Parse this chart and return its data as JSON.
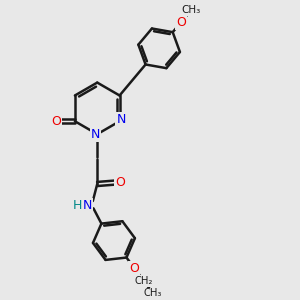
{
  "background_color": "#e8e8e8",
  "bond_color": "#1a1a1a",
  "nitrogen_color": "#0000ee",
  "oxygen_color": "#ee0000",
  "nh_color": "#008888",
  "line_width": 1.8,
  "dpi": 100,
  "figsize": [
    3.0,
    3.0
  ],
  "xlim": [
    0,
    10
  ],
  "ylim": [
    0,
    10
  ]
}
